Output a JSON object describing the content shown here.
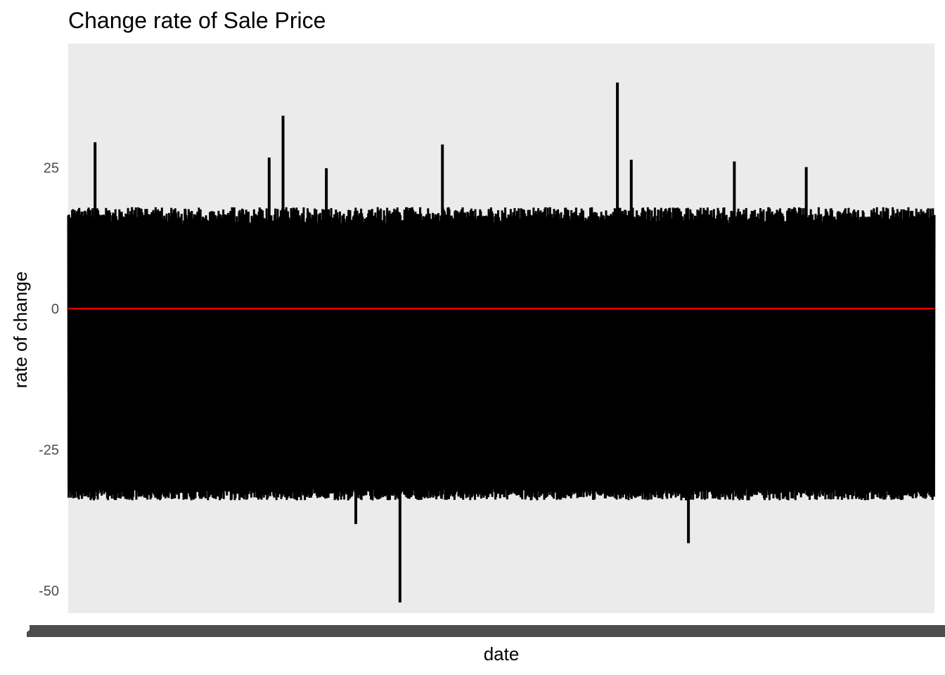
{
  "chart_data": {
    "type": "line",
    "title": "Change rate of Sale Price",
    "xlabel": "date",
    "ylabel": "rate of change",
    "ylim": [
      -54,
      47
    ],
    "yticks": [
      25,
      0,
      -25,
      -50
    ],
    "grid": false,
    "legend": "none",
    "x_tick_labels_overplotted": true,
    "series": [
      {
        "values_summary": "dense daily rate-of-change series oscillating roughly between -34 and +18",
        "typical_range": [
          -34,
          18
        ],
        "spikes": [
          {
            "x_fraction": 0.031,
            "y": 29.5
          },
          {
            "x_fraction": 0.232,
            "y": 26.8
          },
          {
            "x_fraction": 0.248,
            "y": 34.2
          },
          {
            "x_fraction": 0.298,
            "y": 24.9
          },
          {
            "x_fraction": 0.432,
            "y": 29.1
          },
          {
            "x_fraction": 0.634,
            "y": 40.1
          },
          {
            "x_fraction": 0.65,
            "y": 26.4
          },
          {
            "x_fraction": 0.769,
            "y": 26.1
          },
          {
            "x_fraction": 0.852,
            "y": 25.1
          },
          {
            "x_fraction": 0.332,
            "y": -38.2
          },
          {
            "x_fraction": 0.383,
            "y": -52.1
          },
          {
            "x_fraction": 0.716,
            "y": -41.6
          }
        ]
      }
    ],
    "hlines": [
      {
        "y": 0,
        "color": "#ff0000"
      }
    ]
  },
  "colors": {
    "panel_background": "#ebebeb",
    "line": "#000000",
    "zero_line": "#ff0000",
    "tick_text": "#4d4d4d",
    "x_tick_smear": "#4d4d4d"
  }
}
